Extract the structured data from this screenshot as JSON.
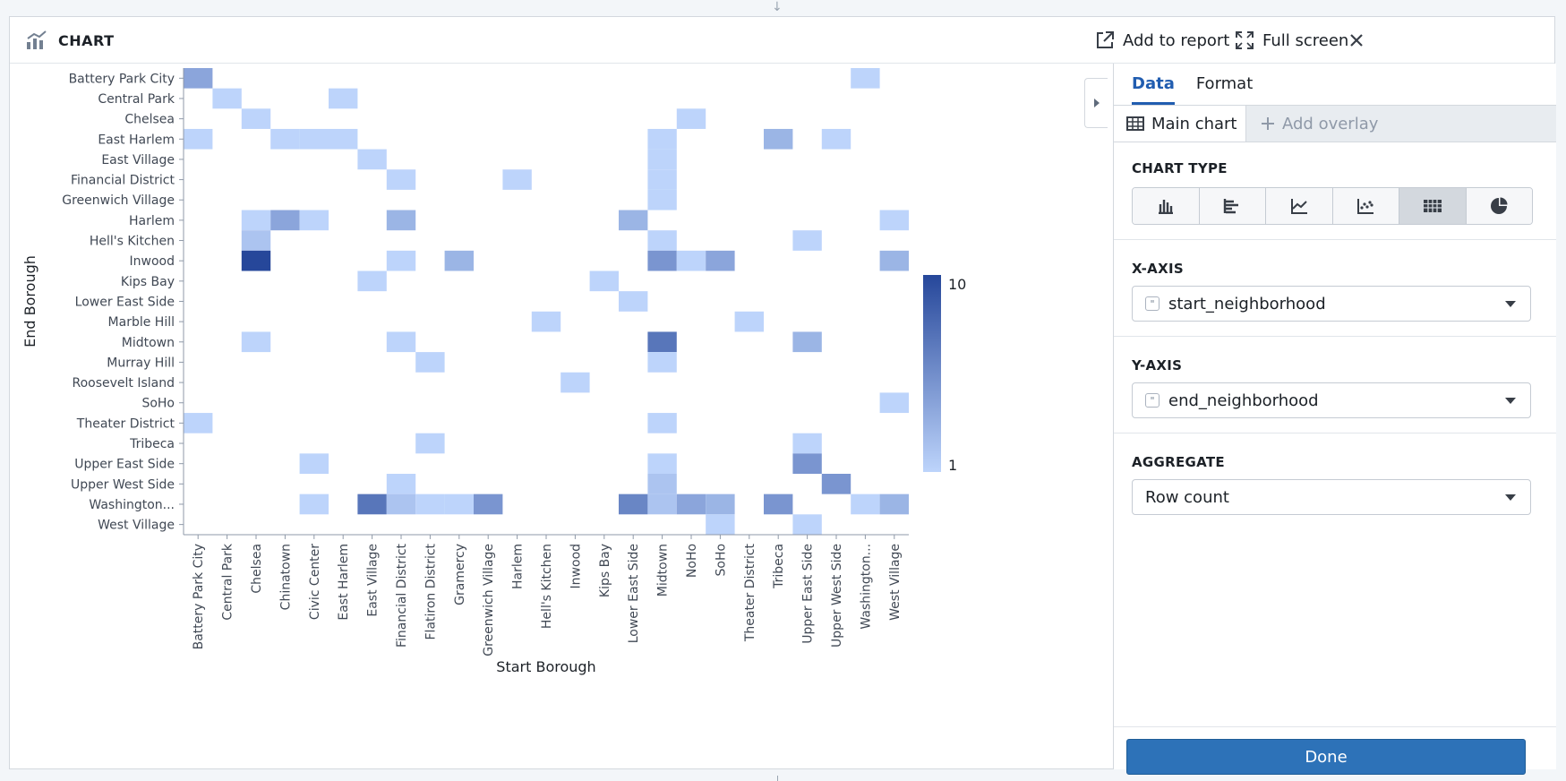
{
  "header": {
    "title": "CHART",
    "add_to_report": "Add to report",
    "full_screen": "Full screen"
  },
  "sidebar": {
    "tabs": [
      "Data",
      "Format"
    ],
    "main_chart": "Main chart",
    "add_overlay": "Add overlay",
    "chart_type_label": "CHART TYPE",
    "chart_types": [
      "bar-chart-icon",
      "horizontal-bar-icon",
      "line-chart-icon",
      "scatter-icon",
      "heatmap-icon",
      "pie-chart-icon"
    ],
    "selected_chart_type": "heatmap",
    "x_axis_label": "X-AXIS",
    "x_axis_value": "start_neighborhood",
    "y_axis_label": "Y-AXIS",
    "y_axis_value": "end_neighborhood",
    "aggregate_label": "AGGREGATE",
    "aggregate_value": "Row count",
    "done": "Done"
  },
  "colors": {
    "accent": "#215db0",
    "heat_low": "#bdd4fb",
    "heat_high": "#26479a"
  },
  "chart_data": {
    "type": "heatmap",
    "xlabel": "Start Borough",
    "ylabel": "End Borough",
    "x": [
      "Battery Park City",
      "Central Park",
      "Chelsea",
      "Chinatown",
      "Civic Center",
      "East Harlem",
      "East Village",
      "Financial District",
      "Flatiron District",
      "Gramercy",
      "Greenwich Village",
      "Harlem",
      "Hell's Kitchen",
      "Inwood",
      "Kips Bay",
      "Lower East Side",
      "Midtown",
      "NoHo",
      "SoHo",
      "Theater District",
      "Tribeca",
      "Upper East Side",
      "Upper West Side",
      "Washington...",
      "West Village"
    ],
    "y": [
      "Battery Park City",
      "Central Park",
      "Chelsea",
      "East Harlem",
      "East Village",
      "Financial District",
      "Greenwich Village",
      "Harlem",
      "Hell's Kitchen",
      "Inwood",
      "Kips Bay",
      "Lower East Side",
      "Marble Hill",
      "Midtown",
      "Murray Hill",
      "Roosevelt Island",
      "SoHo",
      "Theater District",
      "Tribeca",
      "Upper East Side",
      "Upper West Side",
      "Washington...",
      "West Village"
    ],
    "color_range": [
      1,
      10
    ],
    "colorbar_labels": [
      "10",
      "1"
    ],
    "cells": [
      [
        0,
        0,
        4
      ],
      [
        1,
        1,
        1
      ],
      [
        2,
        2,
        1
      ],
      [
        3,
        3,
        1
      ],
      [
        4,
        6,
        1
      ],
      [
        5,
        7,
        1
      ],
      [
        5,
        11,
        1
      ],
      [
        6,
        16,
        1
      ],
      [
        7,
        15,
        3
      ],
      [
        0,
        23,
        1
      ],
      [
        1,
        5,
        1
      ],
      [
        2,
        17,
        1
      ],
      [
        3,
        0,
        1
      ],
      [
        3,
        4,
        1
      ],
      [
        3,
        5,
        1
      ],
      [
        3,
        16,
        1
      ],
      [
        3,
        20,
        3
      ],
      [
        3,
        22,
        1
      ],
      [
        4,
        16,
        1
      ],
      [
        5,
        16,
        1
      ],
      [
        7,
        2,
        1
      ],
      [
        7,
        3,
        4
      ],
      [
        7,
        4,
        1
      ],
      [
        7,
        7,
        3
      ],
      [
        7,
        24,
        1
      ],
      [
        8,
        2,
        2
      ],
      [
        8,
        16,
        1
      ],
      [
        8,
        21,
        1
      ],
      [
        9,
        2,
        10
      ],
      [
        9,
        7,
        1
      ],
      [
        9,
        9,
        3
      ],
      [
        9,
        16,
        5
      ],
      [
        9,
        17,
        1
      ],
      [
        9,
        18,
        4
      ],
      [
        9,
        24,
        3
      ],
      [
        10,
        6,
        1
      ],
      [
        10,
        14,
        1
      ],
      [
        11,
        15,
        1
      ],
      [
        12,
        12,
        1
      ],
      [
        12,
        19,
        1
      ],
      [
        13,
        2,
        1
      ],
      [
        13,
        7,
        1
      ],
      [
        13,
        16,
        7
      ],
      [
        13,
        21,
        3
      ],
      [
        14,
        8,
        1
      ],
      [
        14,
        16,
        1
      ],
      [
        15,
        13,
        1
      ],
      [
        16,
        24,
        1
      ],
      [
        17,
        0,
        1
      ],
      [
        17,
        16,
        1
      ],
      [
        18,
        8,
        1
      ],
      [
        18,
        21,
        1
      ],
      [
        19,
        4,
        1
      ],
      [
        19,
        16,
        1
      ],
      [
        19,
        21,
        5
      ],
      [
        20,
        7,
        1
      ],
      [
        20,
        16,
        2
      ],
      [
        20,
        22,
        5
      ],
      [
        21,
        4,
        1
      ],
      [
        21,
        6,
        7
      ],
      [
        21,
        7,
        2
      ],
      [
        21,
        8,
        1
      ],
      [
        21,
        9,
        1
      ],
      [
        21,
        10,
        5
      ],
      [
        21,
        15,
        6
      ],
      [
        21,
        16,
        2
      ],
      [
        21,
        17,
        4
      ],
      [
        21,
        18,
        3
      ],
      [
        21,
        20,
        5
      ],
      [
        21,
        23,
        1
      ],
      [
        21,
        24,
        3
      ],
      [
        22,
        18,
        1
      ],
      [
        22,
        21,
        1
      ]
    ]
  }
}
